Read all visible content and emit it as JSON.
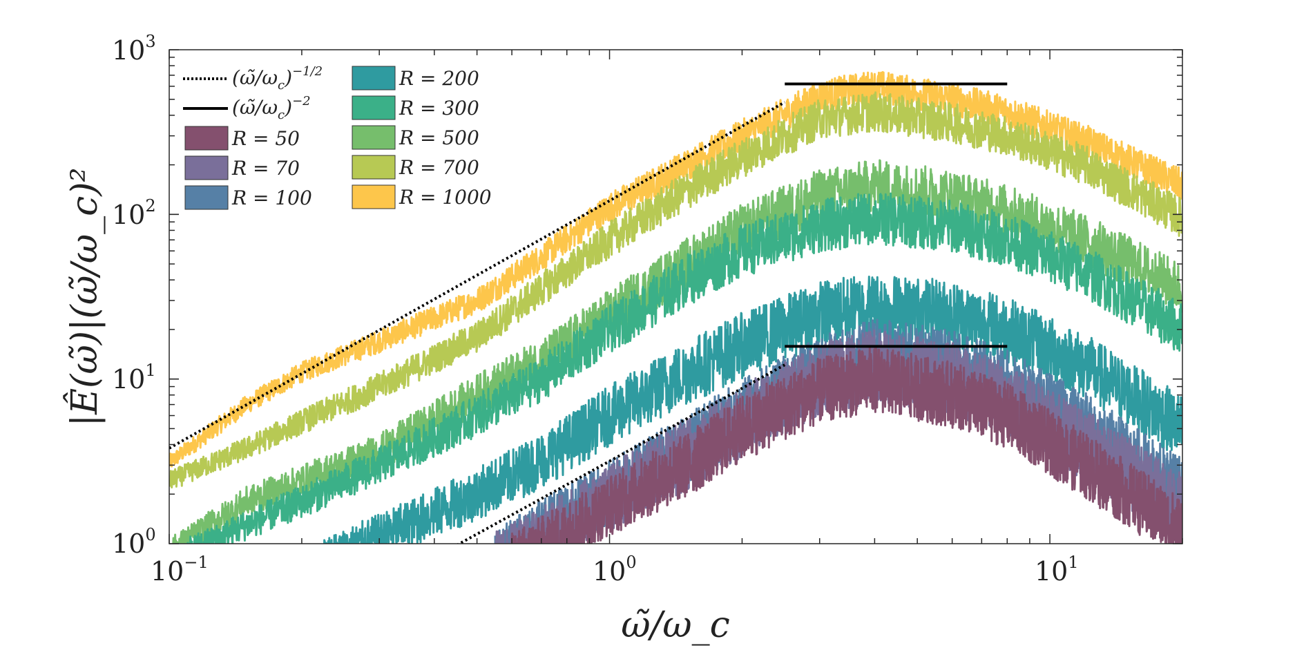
{
  "chart_data": {
    "type": "line",
    "xscale": "log",
    "yscale": "log",
    "xlim": [
      0.1,
      20
    ],
    "ylim": [
      1,
      1000
    ],
    "xlabel": "ω̃/ω_c",
    "ylabel": "|Ê(ω̃)|(ω̃/ω_c)²",
    "x_ticks": [
      {
        "base": "10",
        "exp": "−1",
        "value": 0.1
      },
      {
        "base": "10",
        "exp": "0",
        "value": 1
      },
      {
        "base": "10",
        "exp": "1",
        "value": 10
      }
    ],
    "y_ticks": [
      {
        "base": "10",
        "exp": "0",
        "value": 1
      },
      {
        "base": "10",
        "exp": "1",
        "value": 10
      },
      {
        "base": "10",
        "exp": "2",
        "value": 100
      },
      {
        "base": "10",
        "exp": "3",
        "value": 1000
      }
    ],
    "grid": false,
    "legend_position": "top-left",
    "legend": [
      {
        "label_main": "(ω̃/ω",
        "label_sub": "c",
        "label_close": ")",
        "label_exp": "−1/2",
        "style": "dotted",
        "color": "#000000"
      },
      {
        "label_main": "(ω̃/ω",
        "label_sub": "c",
        "label_close": ")",
        "label_exp": "−2",
        "style": "solid",
        "color": "#000000"
      }
    ],
    "reference_lines": [
      {
        "style": "dotted",
        "x": [
          0.1,
          2.5
        ],
        "y": [
          3.8,
          480
        ]
      },
      {
        "style": "dotted",
        "x": [
          0.45,
          2.5
        ],
        "y": [
          0.98,
          12.2
        ]
      },
      {
        "style": "solid",
        "x": [
          2.5,
          8
        ],
        "y": [
          620,
          620
        ]
      },
      {
        "style": "solid",
        "x": [
          2.5,
          8
        ],
        "y": [
          15.8,
          15.8
        ]
      }
    ],
    "series": [
      {
        "name": "R = 1000",
        "color": "#FDC64B",
        "x": [
          0.1,
          0.15,
          0.2,
          0.3,
          0.5,
          0.7,
          1,
          1.5,
          2,
          3,
          4,
          6,
          8,
          12,
          20
        ],
        "y": [
          3.1,
          7,
          11,
          17,
          30,
          55,
          110,
          200,
          300,
          520,
          600,
          500,
          420,
          280,
          150
        ],
        "noise": 0.1
      },
      {
        "name": "R = 700",
        "color": "#B7C954",
        "x": [
          0.1,
          0.15,
          0.2,
          0.3,
          0.5,
          0.7,
          1,
          1.5,
          2,
          3,
          4,
          6,
          8,
          12,
          20
        ],
        "y": [
          2.4,
          3.8,
          5.5,
          9,
          18,
          35,
          70,
          140,
          220,
          380,
          420,
          360,
          300,
          200,
          95
        ],
        "noise": 0.12
      },
      {
        "name": "R = 500",
        "color": "#76BE6C",
        "x": [
          0.1,
          0.15,
          0.2,
          0.3,
          0.5,
          0.7,
          1,
          1.5,
          2,
          3,
          4,
          6,
          8,
          12,
          20
        ],
        "y": [
          0.9,
          1.8,
          2.4,
          3.6,
          8,
          13,
          25,
          50,
          80,
          130,
          150,
          130,
          105,
          70,
          35
        ],
        "noise": 0.16
      },
      {
        "name": "R = 300",
        "color": "#3BB088",
        "x": [
          0.1,
          0.15,
          0.2,
          0.3,
          0.5,
          0.7,
          1,
          1.5,
          2,
          3,
          4,
          6,
          8,
          12,
          20
        ],
        "y": [
          0.8,
          1.3,
          1.8,
          3,
          6,
          10,
          20,
          40,
          60,
          85,
          95,
          85,
          70,
          45,
          20
        ],
        "noise": 0.16
      },
      {
        "name": "R = 200",
        "color": "#2F9BA0",
        "x": [
          0.22,
          0.3,
          0.5,
          0.7,
          1,
          1.5,
          2,
          3,
          4,
          6,
          8,
          12,
          20
        ],
        "y": [
          0.8,
          1.1,
          2,
          3.2,
          6,
          11,
          16,
          25,
          28,
          25,
          20,
          12,
          5
        ],
        "noise": 0.2
      },
      {
        "name": "R = 100",
        "color": "#5680A6",
        "x": [
          0.55,
          0.7,
          1,
          1.5,
          2,
          3,
          4,
          6,
          8,
          12,
          20
        ],
        "y": [
          0.8,
          1.2,
          2,
          3.8,
          6,
          11,
          14,
          12,
          9,
          5,
          2
        ],
        "noise": 0.22
      },
      {
        "name": "R = 70",
        "color": "#7A6F9A",
        "x": [
          0.55,
          0.7,
          1,
          1.5,
          2,
          3,
          4,
          6,
          8,
          12,
          20
        ],
        "y": [
          0.8,
          1.1,
          1.9,
          3.5,
          5.5,
          10,
          12,
          10,
          7.5,
          4,
          1.6
        ],
        "noise": 0.22
      },
      {
        "name": "R = 50",
        "color": "#84506E",
        "x": [
          0.6,
          0.8,
          1,
          1.5,
          2,
          3,
          4,
          6,
          8,
          12,
          20
        ],
        "y": [
          0.8,
          1.2,
          1.7,
          3,
          5,
          8.5,
          10,
          8,
          6,
          3,
          1.2
        ],
        "noise": 0.2
      }
    ],
    "legend_series_order": [
      "R = 50",
      "R = 70",
      "R = 100",
      "R = 200",
      "R = 300",
      "R = 500",
      "R = 700",
      "R = 1000"
    ]
  }
}
